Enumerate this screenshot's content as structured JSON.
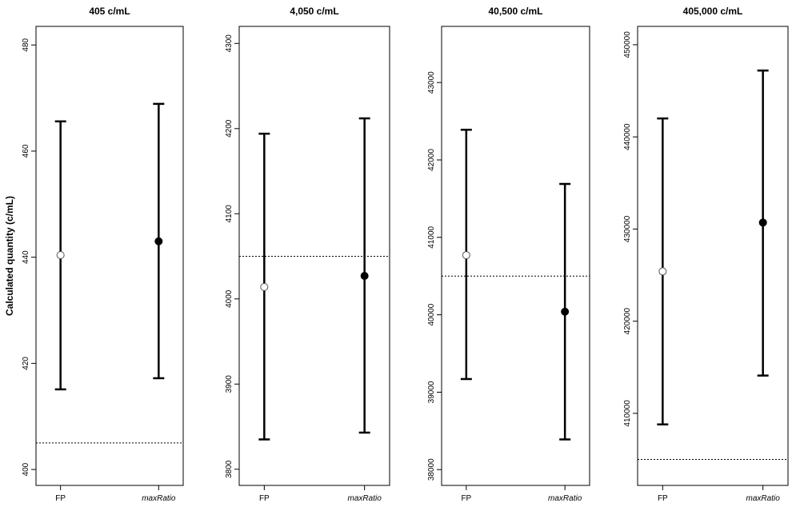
{
  "chart_data": {
    "type": "errorbar",
    "ylabel": "Calculated quantity (c/mL)",
    "categories": [
      "FP",
      "maxRatio"
    ],
    "marker_styles": {
      "FP": "open-circle",
      "maxRatio": "filled-circle"
    },
    "panels": [
      {
        "title": "405 c/mL",
        "reference_line": 405,
        "ylim": [
          397,
          483.5
        ],
        "yticks": [
          400,
          420,
          440,
          460,
          480
        ],
        "points": [
          {
            "category": "FP",
            "value": 440.4,
            "lower": 415.1,
            "upper": 465.6
          },
          {
            "category": "maxRatio",
            "value": 443.0,
            "lower": 417.2,
            "upper": 468.9
          }
        ]
      },
      {
        "title": "4,050 c/mL",
        "reference_line": 4050,
        "ylim": [
          3781,
          4320
        ],
        "yticks": [
          3800,
          3900,
          4000,
          4100,
          4200,
          4300
        ],
        "points": [
          {
            "category": "FP",
            "value": 4014,
            "lower": 3835,
            "upper": 4194
          },
          {
            "category": "maxRatio",
            "value": 4027,
            "lower": 3843,
            "upper": 4212
          }
        ]
      },
      {
        "title": "40,500 c/mL",
        "reference_line": 40500,
        "ylim": [
          37796,
          43725
        ],
        "yticks": [
          38000,
          39000,
          40000,
          41000,
          42000,
          43000
        ],
        "points": [
          {
            "category": "FP",
            "value": 40770,
            "lower": 39170,
            "upper": 42390
          },
          {
            "category": "maxRatio",
            "value": 40040,
            "lower": 38390,
            "upper": 41690
          }
        ]
      },
      {
        "title": "405,000 c/mL",
        "reference_line": 405000,
        "ylim": [
          402180,
          451990
        ],
        "yticks": [
          410000,
          420000,
          430000,
          440000,
          450000
        ],
        "points": [
          {
            "category": "FP",
            "value": 425400,
            "lower": 408800,
            "upper": 442000
          },
          {
            "category": "maxRatio",
            "value": 430700,
            "lower": 414100,
            "upper": 447200
          }
        ]
      }
    ]
  }
}
